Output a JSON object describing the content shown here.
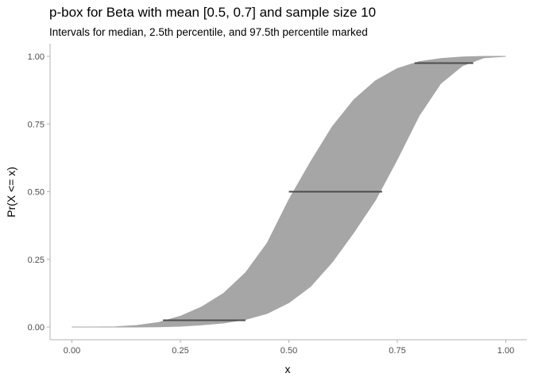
{
  "chart_data": {
    "type": "area",
    "title": "p-box for Beta with mean [0.5, 0.7] and sample size 10",
    "subtitle": "Intervals for median, 2.5th percentile, and 97.5th percentile marked",
    "xlabel": "x",
    "ylabel": "Pr(X <= x)",
    "xlim": [
      0,
      1
    ],
    "ylim": [
      0,
      1
    ],
    "x_ticks": [
      "0.00",
      "0.25",
      "0.50",
      "0.75",
      "1.00"
    ],
    "y_ticks": [
      "0.00",
      "0.25",
      "0.50",
      "0.75",
      "1.00"
    ],
    "grid": false,
    "band": {
      "fill": "#a6a6a6",
      "upper": {
        "x": [
          0.0,
          0.05,
          0.1,
          0.15,
          0.2,
          0.25,
          0.3,
          0.35,
          0.4,
          0.45,
          0.5,
          0.55,
          0.6,
          0.65,
          0.7,
          0.75,
          0.8,
          0.85,
          0.9,
          0.95,
          1.0
        ],
        "y": [
          0.0,
          0.0,
          0.001,
          0.006,
          0.017,
          0.04,
          0.075,
          0.125,
          0.2,
          0.31,
          0.47,
          0.61,
          0.74,
          0.84,
          0.91,
          0.955,
          0.98,
          0.992,
          0.998,
          1.0,
          1.0
        ]
      },
      "lower": {
        "x": [
          0.0,
          0.05,
          0.1,
          0.15,
          0.2,
          0.25,
          0.3,
          0.35,
          0.4,
          0.45,
          0.5,
          0.55,
          0.6,
          0.65,
          0.7,
          0.75,
          0.8,
          0.85,
          0.9,
          0.95,
          1.0
        ],
        "y": [
          0.0,
          0.0,
          0.0,
          0.0,
          0.001,
          0.003,
          0.008,
          0.015,
          0.028,
          0.05,
          0.09,
          0.15,
          0.24,
          0.35,
          0.47,
          0.62,
          0.78,
          0.9,
          0.965,
          0.995,
          1.0
        ]
      }
    },
    "intervals": [
      {
        "name": "2.5th percentile",
        "y": 0.025,
        "x_min": 0.21,
        "x_max": 0.4
      },
      {
        "name": "median",
        "y": 0.5,
        "x_min": 0.5,
        "x_max": 0.715
      },
      {
        "name": "97.5th percentile",
        "y": 0.975,
        "x_min": 0.79,
        "x_max": 0.925
      }
    ],
    "interval_color": "#4d4d4d",
    "axis_color": "#b3b3b3"
  }
}
